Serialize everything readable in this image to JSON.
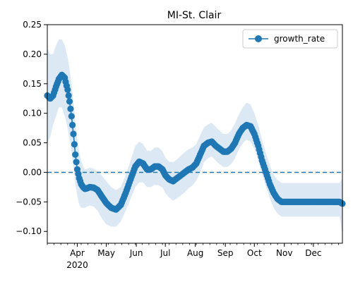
{
  "chart_data": {
    "type": "line",
    "title": "MI-St. Clair",
    "xlabel": "",
    "ylabel": "",
    "xlim": [
      "2020-03-01",
      "2020-12-31"
    ],
    "ylim": [
      -0.12,
      0.25
    ],
    "grid": false,
    "legend_position": "top-right",
    "x_ticks": [
      {
        "date": "2020-04-01",
        "label": "Apr",
        "sublabel": "2020"
      },
      {
        "date": "2020-05-01",
        "label": "May"
      },
      {
        "date": "2020-06-01",
        "label": "Jun"
      },
      {
        "date": "2020-07-01",
        "label": "Jul"
      },
      {
        "date": "2020-08-01",
        "label": "Aug"
      },
      {
        "date": "2020-09-01",
        "label": "Sep"
      },
      {
        "date": "2020-10-01",
        "label": "Oct"
      },
      {
        "date": "2020-11-01",
        "label": "Nov"
      },
      {
        "date": "2020-12-01",
        "label": "Dec"
      }
    ],
    "y_ticks": [
      {
        "value": 0.25,
        "label": "0.25"
      },
      {
        "value": 0.2,
        "label": "0.20"
      },
      {
        "value": 0.15,
        "label": "0.15"
      },
      {
        "value": 0.1,
        "label": "0.10"
      },
      {
        "value": 0.05,
        "label": "0.05"
      },
      {
        "value": 0.0,
        "label": "0.00"
      },
      {
        "value": -0.05,
        "label": "−0.05"
      },
      {
        "value": -0.1,
        "label": "−0.10"
      }
    ],
    "reference_line": {
      "y": 0.0,
      "style": "dashed"
    },
    "series": [
      {
        "name": "growth_rate",
        "color": "#1f77b4",
        "band_color": "#dce9f5",
        "x": [
          "2020-03-01",
          "2020-03-04",
          "2020-03-07",
          "2020-03-10",
          "2020-03-13",
          "2020-03-16",
          "2020-03-19",
          "2020-03-22",
          "2020-03-24",
          "2020-03-26",
          "2020-03-28",
          "2020-03-30",
          "2020-04-01",
          "2020-04-03",
          "2020-04-05",
          "2020-04-07",
          "2020-04-09",
          "2020-04-11",
          "2020-04-14",
          "2020-04-18",
          "2020-04-22",
          "2020-04-26",
          "2020-05-01",
          "2020-05-06",
          "2020-05-11",
          "2020-05-16",
          "2020-05-21",
          "2020-05-26",
          "2020-05-31",
          "2020-06-04",
          "2020-06-08",
          "2020-06-12",
          "2020-06-16",
          "2020-06-20",
          "2020-06-24",
          "2020-06-28",
          "2020-07-01",
          "2020-07-05",
          "2020-07-09",
          "2020-07-13",
          "2020-07-17",
          "2020-07-21",
          "2020-07-25",
          "2020-07-29",
          "2020-08-02",
          "2020-08-06",
          "2020-08-10",
          "2020-08-14",
          "2020-08-18",
          "2020-08-22",
          "2020-08-26",
          "2020-08-30",
          "2020-09-03",
          "2020-09-07",
          "2020-09-11",
          "2020-09-15",
          "2020-09-19",
          "2020-09-23",
          "2020-09-27",
          "2020-10-01",
          "2020-10-05",
          "2020-10-09",
          "2020-10-13",
          "2020-10-17",
          "2020-10-21",
          "2020-10-25",
          "2020-10-29",
          "2020-11-02",
          "2020-11-06",
          "2020-11-10",
          "2020-11-14",
          "2020-11-18",
          "2020-11-22",
          "2020-11-26",
          "2020-11-30",
          "2020-12-04",
          "2020-12-08",
          "2020-12-12",
          "2020-12-16",
          "2020-12-20",
          "2020-12-24",
          "2020-12-28",
          "2020-12-31"
        ],
        "values": [
          0.13,
          0.125,
          0.13,
          0.145,
          0.158,
          0.165,
          0.16,
          0.14,
          0.12,
          0.095,
          0.065,
          0.03,
          0.005,
          -0.01,
          -0.02,
          -0.025,
          -0.028,
          -0.027,
          -0.025,
          -0.026,
          -0.03,
          -0.04,
          -0.052,
          -0.06,
          -0.063,
          -0.055,
          -0.035,
          -0.012,
          0.01,
          0.018,
          0.015,
          0.005,
          0.005,
          0.01,
          0.01,
          0.005,
          -0.005,
          -0.012,
          -0.015,
          -0.01,
          -0.005,
          0.0,
          0.005,
          0.008,
          0.015,
          0.03,
          0.045,
          0.05,
          0.052,
          0.045,
          0.04,
          0.035,
          0.035,
          0.04,
          0.05,
          0.065,
          0.075,
          0.08,
          0.078,
          0.065,
          0.045,
          0.02,
          0.0,
          -0.02,
          -0.035,
          -0.045,
          -0.05,
          -0.05,
          -0.05,
          -0.05,
          -0.05,
          -0.05,
          -0.05,
          -0.05,
          -0.05,
          -0.05,
          -0.05,
          -0.05,
          -0.05,
          -0.05,
          -0.05,
          -0.05,
          -0.053
        ],
        "lower": [
          0.05,
          0.06,
          0.08,
          0.095,
          0.11,
          0.11,
          0.095,
          0.075,
          0.055,
          0.035,
          0.01,
          -0.02,
          -0.04,
          -0.055,
          -0.06,
          -0.06,
          -0.06,
          -0.058,
          -0.056,
          -0.058,
          -0.065,
          -0.077,
          -0.088,
          -0.092,
          -0.092,
          -0.083,
          -0.065,
          -0.045,
          -0.025,
          -0.017,
          -0.017,
          -0.025,
          -0.025,
          -0.021,
          -0.022,
          -0.026,
          -0.035,
          -0.043,
          -0.048,
          -0.044,
          -0.039,
          -0.034,
          -0.027,
          -0.022,
          -0.014,
          0.0,
          0.017,
          0.024,
          0.027,
          0.02,
          0.014,
          0.009,
          0.009,
          0.014,
          0.024,
          0.039,
          0.049,
          0.055,
          0.052,
          0.04,
          0.02,
          -0.004,
          -0.024,
          -0.044,
          -0.06,
          -0.07,
          -0.075,
          -0.075,
          -0.075,
          -0.075,
          -0.075,
          -0.075,
          -0.075,
          -0.075,
          -0.075,
          -0.075,
          -0.075,
          -0.075,
          -0.075,
          -0.075,
          -0.075,
          -0.075,
          -0.105
        ],
        "upper": [
          0.21,
          0.2,
          0.2,
          0.215,
          0.225,
          0.225,
          0.215,
          0.195,
          0.175,
          0.15,
          0.12,
          0.085,
          0.055,
          0.035,
          0.02,
          0.01,
          0.005,
          0.006,
          0.008,
          0.006,
          0.002,
          -0.005,
          -0.015,
          -0.025,
          -0.03,
          -0.025,
          -0.005,
          0.02,
          0.045,
          0.052,
          0.048,
          0.037,
          0.036,
          0.042,
          0.042,
          0.036,
          0.025,
          0.018,
          0.017,
          0.022,
          0.028,
          0.034,
          0.039,
          0.042,
          0.048,
          0.063,
          0.076,
          0.081,
          0.084,
          0.077,
          0.071,
          0.065,
          0.065,
          0.071,
          0.083,
          0.098,
          0.11,
          0.118,
          0.115,
          0.1,
          0.08,
          0.055,
          0.033,
          0.012,
          -0.004,
          -0.013,
          -0.018,
          -0.018,
          -0.018,
          -0.018,
          -0.018,
          -0.018,
          -0.018,
          -0.018,
          -0.018,
          -0.018,
          -0.018,
          -0.018,
          -0.018,
          -0.018,
          -0.018,
          -0.018,
          -0.01
        ]
      }
    ]
  }
}
